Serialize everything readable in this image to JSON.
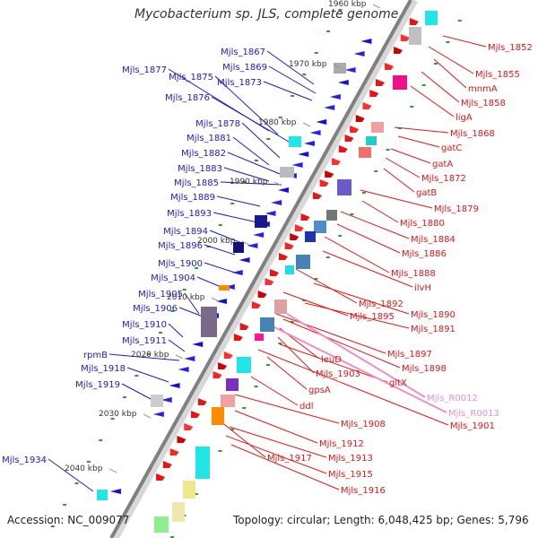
{
  "title": "Mycobacterium sp. JLS, complete genome",
  "footer": {
    "accession": "Accession: NC_009077",
    "topology": "Topology: circular; Length: 6,048,425 bp; Genes: 5,796"
  },
  "colors": {
    "left_label": "#1a1acc",
    "right_label": "#e01818",
    "rna_label": "#f090c0",
    "backbone": "#808080",
    "tick": "#2e9e2e"
  },
  "kbp_ticks": [
    "1960 kbp",
    "1970 kbp",
    "1980 kbp",
    "1990 kbp",
    "2000 kbp",
    "2010 kbp",
    "2020 kbp",
    "2030 kbp",
    "2040 kbp"
  ],
  "left_genes": [
    "Mjls_1867",
    "Mjls_1869",
    "Mjls_1877",
    "Mjls_1875",
    "Mjls_1873",
    "Mjls_1876",
    "Mjls_1878",
    "Mjls_1881",
    "Mjls_1882",
    "Mjls_1883",
    "Mjls_1885",
    "Mjls_1889",
    "Mjls_1893",
    "Mjls_1894",
    "Mjls_1896",
    "Mjls_1900",
    "Mjls_1904",
    "Mjls_1905",
    "Mjls_1906",
    "Mjls_1910",
    "Mjls_1911",
    "rpmB",
    "Mjls_1918",
    "Mjls_1919",
    "Mjls_1934"
  ],
  "right_genes": [
    "Mjls_1852",
    "Mjls_1855",
    "mnmA",
    "Mjls_1858",
    "ligA",
    "Mjls_1868",
    "gatC",
    "gatA",
    "Mjls_1872",
    "gatB",
    "Mjls_1879",
    "Mjls_1880",
    "Mjls_1884",
    "Mjls_1886",
    "Mjls_1888",
    "ilvH",
    "Mjls_1892",
    "Mjls_1890",
    "Mjls_1895",
    "Mjls_1891",
    "Mjls_1897",
    "Mjls_1898",
    "leuD",
    "Mjls_1903",
    "gltX",
    "gpsA",
    "Mjls_R0012",
    "Mjls_R0013",
    "ddl",
    "Mjls_1901",
    "Mjls_1908",
    "Mjls_1912",
    "Mjls_1917",
    "Mjls_1913",
    "Mjls_1915",
    "Mjls_1916"
  ]
}
